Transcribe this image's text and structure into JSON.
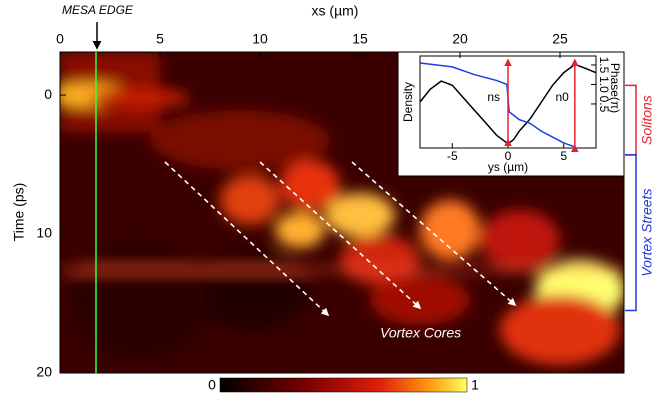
{
  "chart_data": [
    {
      "type": "heatmap",
      "x_label": "xs (µm)",
      "y_label": "Time (ps)",
      "xlim": [
        0,
        28.2
      ],
      "xticks": [
        0,
        5,
        10,
        15,
        20,
        25
      ],
      "ylim": [
        -3.1,
        20
      ],
      "yticks": [
        0,
        10,
        20
      ],
      "y_reversed": true,
      "colorbar": {
        "range": [
          0,
          1
        ],
        "ticks": [
          0,
          1
        ]
      },
      "annotations": [
        {
          "text": "MESA EDGE",
          "x": 1.8,
          "color": "#33ff33"
        },
        {
          "text": "Vortex Cores"
        }
      ],
      "ranges": [
        {
          "label": "Solitons",
          "y": [
            -0.7,
            4.3
          ],
          "color": "#e8202a"
        },
        {
          "label": "Vortex Streets",
          "y": [
            4.3,
            15.5
          ],
          "color": "#2233dd"
        }
      ]
    },
    {
      "type": "line",
      "x_label": "ys (µm)",
      "y_label": "Density",
      "y2_label": "Phase(π)",
      "xlim": [
        -7.9,
        7.9
      ],
      "xticks": [
        -5,
        0,
        5
      ],
      "ylim": [
        0,
        1.1
      ],
      "y2lim": [
        -0.63,
        1.73
      ],
      "y2ticks": [
        0.5,
        {
          "value": 1,
          "label": "1.0"
        },
        1.5
      ],
      "annotations": [
        "ns",
        "n0"
      ],
      "series": [
        {
          "name": "Density",
          "color": "#000000",
          "x": [
            -7.9,
            -7,
            -6,
            -5,
            -4,
            -3,
            -2,
            -1,
            0,
            0.5,
            1,
            2,
            3,
            4,
            5,
            6,
            7,
            7.9
          ],
          "values": [
            0.55,
            0.7,
            0.8,
            0.75,
            0.6,
            0.45,
            0.3,
            0.15,
            0.05,
            0.1,
            0.2,
            0.35,
            0.55,
            0.75,
            0.9,
            1.0,
            0.95,
            0.9
          ]
        },
        {
          "name": "Phase",
          "color": "#1f3fe0",
          "axis": "y2",
          "x": [
            -7.9,
            -5,
            -3,
            -1,
            -0.1,
            0.1,
            1,
            2,
            3,
            4,
            5,
            6
          ],
          "values": [
            1.55,
            1.45,
            1.25,
            1.1,
            1.0,
            0.3,
            0.1,
            0.0,
            -0.2,
            -0.35,
            -0.5,
            -0.6
          ]
        }
      ]
    }
  ]
}
